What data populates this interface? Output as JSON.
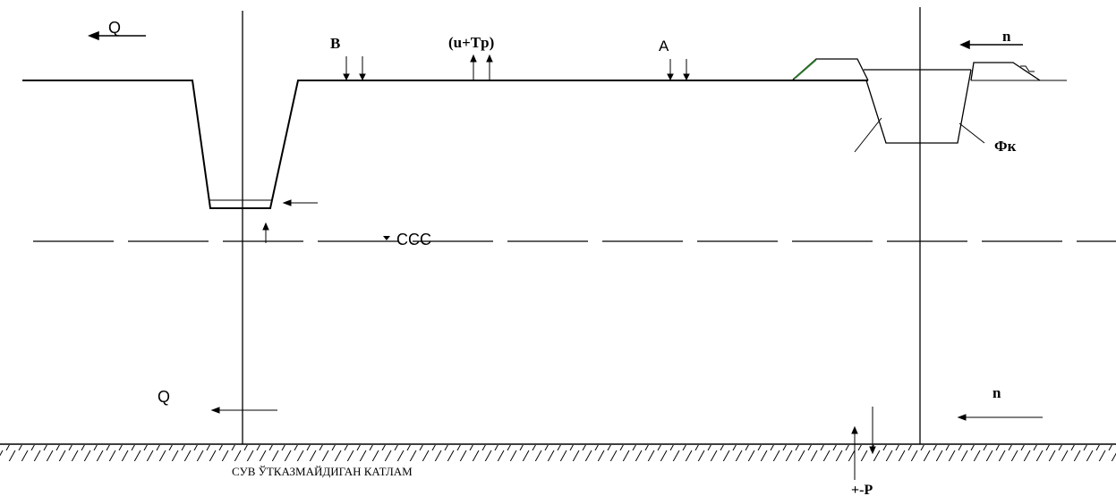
{
  "labels": {
    "q_top": "Q",
    "b": "B",
    "ut": "(u+Tp)",
    "a": "A",
    "n_top": "n",
    "phi_k": "Фк",
    "ccc": "CCC",
    "q_bottom": "Q",
    "n_bottom": "n",
    "aquiclude": "СУВ ЎТКАЗМАЙДИГАН КАТЛАМ",
    "p": "+-P"
  },
  "colors": {
    "line": "#000000",
    "levee_slope": "#2e8b2e"
  }
}
